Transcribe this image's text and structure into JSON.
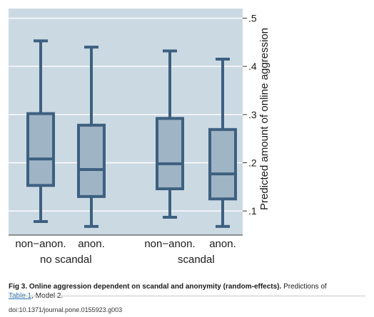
{
  "chart_data": {
    "type": "boxplot",
    "ylabel": "Predicted amount of online aggression",
    "ylim": [
      0.05,
      0.52
    ],
    "y_ticks": [
      0.1,
      0.2,
      0.3,
      0.4,
      0.5
    ],
    "y_tick_labels": [
      ".1",
      ".2",
      ".3",
      ".4",
      ".5"
    ],
    "y_axis_side": "right",
    "grid": true,
    "groups": [
      "no scandal",
      "scandal"
    ],
    "boxes": [
      {
        "group": "no scandal",
        "label": "non−anon.",
        "whisker_low": 0.078,
        "q1": 0.153,
        "median": 0.208,
        "q3": 0.302,
        "whisker_high": 0.453
      },
      {
        "group": "no scandal",
        "label": "anon.",
        "whisker_low": 0.068,
        "q1": 0.13,
        "median": 0.186,
        "q3": 0.278,
        "whisker_high": 0.44
      },
      {
        "group": "scandal",
        "label": "non−anon.",
        "whisker_low": 0.087,
        "q1": 0.146,
        "median": 0.198,
        "q3": 0.292,
        "whisker_high": 0.432
      },
      {
        "group": "scandal",
        "label": "anon.",
        "whisker_low": 0.068,
        "q1": 0.125,
        "median": 0.177,
        "q3": 0.269,
        "whisker_high": 0.415
      }
    ],
    "colors": {
      "background": "#cbd9e3",
      "box_fill": "#9fb4c4",
      "box_stroke": "#3d6080",
      "grid": "#ffffff"
    }
  },
  "caption": {
    "fig_label": "Fig 3.",
    "title": "Online aggression dependent on scandal and anonymity (random-effects).",
    "text_before_link": "Predictions of",
    "link_text": "Table 1",
    "text_after_link": ", Model 2."
  },
  "doi": "doi:10.1371/journal.pone.0155923.g003"
}
